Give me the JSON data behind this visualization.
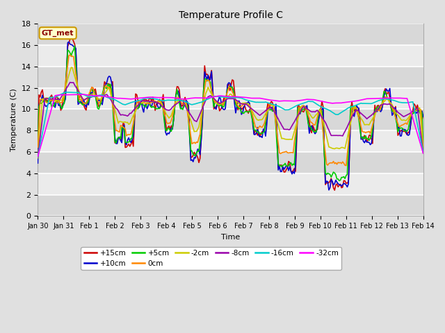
{
  "title": "Temperature Profile C",
  "xlabel": "Time",
  "ylabel": "Temperature (C)",
  "ylim": [
    0,
    18
  ],
  "yticks": [
    0,
    2,
    4,
    6,
    8,
    10,
    12,
    14,
    16,
    18
  ],
  "date_labels": [
    "Jan 30",
    "Jan 31",
    "Feb 1",
    "Feb 2",
    "Feb 3",
    "Feb 4",
    "Feb 5",
    "Feb 6",
    "Feb 7",
    "Feb 8",
    "Feb 9",
    "Feb 10",
    "Feb 11",
    "Feb 12",
    "Feb 13",
    "Feb 14"
  ],
  "legend_label": "GT_met",
  "series_labels": [
    "+15cm",
    "+10cm",
    "+5cm",
    "0cm",
    "-2cm",
    "-8cm",
    "-16cm",
    "-32cm"
  ],
  "series_colors": [
    "#cc0000",
    "#0000cc",
    "#00cc00",
    "#ff8800",
    "#cccc00",
    "#9900aa",
    "#00cccc",
    "#ff00ff"
  ],
  "series_linewidths": [
    1.2,
    1.2,
    1.2,
    1.2,
    1.2,
    1.2,
    1.2,
    1.2
  ],
  "fig_width": 6.4,
  "fig_height": 4.8,
  "dpi": 100,
  "plot_bg_color": "#ebebeb",
  "fig_bg_color": "#e0e0e0",
  "grid_color": "#ffffff",
  "n_points": 336
}
